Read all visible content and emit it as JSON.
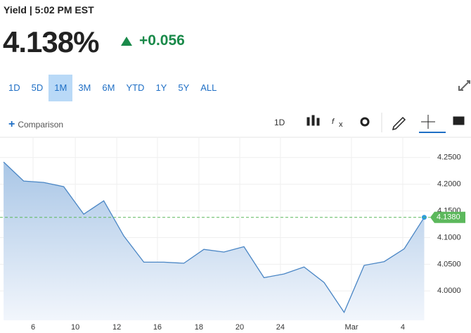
{
  "header": {
    "title": "Yield | 5:02 PM EST",
    "price": "4.138%",
    "change": "+0.056"
  },
  "ranges": [
    "1D",
    "5D",
    "1M",
    "3M",
    "6M",
    "YTD",
    "1Y",
    "5Y",
    "ALL"
  ],
  "toolbar": {
    "comparison": "Comparison",
    "interval": "1D"
  },
  "chart_data": {
    "type": "area",
    "color": "#4a86c5",
    "x": [
      0,
      1,
      2,
      3,
      4,
      5,
      6,
      7,
      8,
      9,
      10,
      11,
      12,
      13,
      14,
      15,
      16,
      17,
      18,
      19,
      20,
      21
    ],
    "values": [
      4.2417,
      4.2061,
      4.2034,
      4.1955,
      4.144,
      4.169,
      4.103,
      4.054,
      4.054,
      4.052,
      4.078,
      4.073,
      4.083,
      4.025,
      4.032,
      4.045,
      4.016,
      3.96,
      4.048,
      4.055,
      4.079,
      4.138
    ],
    "xlim": [
      -0.18,
      21.3
    ],
    "ylim": [
      3.945,
      4.288
    ],
    "xticks": [
      {
        "value": 1.47,
        "label": "6"
      },
      {
        "value": 3.58,
        "label": "10"
      },
      {
        "value": 5.65,
        "label": "12"
      },
      {
        "value": 7.68,
        "label": "16"
      },
      {
        "value": 9.75,
        "label": "18"
      },
      {
        "value": 11.79,
        "label": "20"
      },
      {
        "value": 13.82,
        "label": "24"
      },
      {
        "value": 17.37,
        "label": "Mar"
      },
      {
        "value": 19.93,
        "label": "4"
      }
    ],
    "yticks": [
      {
        "value": 4.0,
        "label": "4.0000"
      },
      {
        "value": 4.05,
        "label": "4.0500"
      },
      {
        "value": 4.1,
        "label": "4.1000"
      },
      {
        "value": 4.15,
        "label": "4.1500"
      },
      {
        "value": 4.2,
        "label": "4.2000"
      },
      {
        "value": 4.25,
        "label": "4.2500"
      }
    ],
    "current": {
      "value": 4.138,
      "label": "4.1380"
    },
    "current_color": "#5cb85c",
    "grid": true
  }
}
